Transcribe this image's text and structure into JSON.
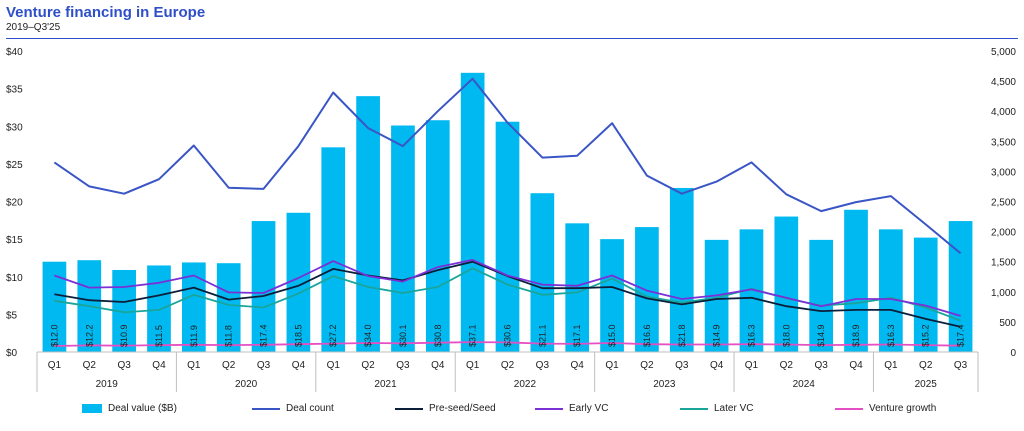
{
  "header": {
    "title": "Venture financing in Europe",
    "subtitle": "2019–Q3'25"
  },
  "colors": {
    "bar": "#00b9f1",
    "deal_count": "#3a55c6",
    "preseed": "#0b1f3a",
    "early_vc": "#7b2fd6",
    "later_vc": "#1aa59a",
    "venture_growth": "#e64fc3",
    "rule": "#2f4fc8"
  },
  "chart_data": {
    "type": "bar",
    "quarters": [
      "Q1",
      "Q2",
      "Q3",
      "Q4",
      "Q1",
      "Q2",
      "Q3",
      "Q4",
      "Q1",
      "Q2",
      "Q3",
      "Q4",
      "Q1",
      "Q2",
      "Q3",
      "Q4",
      "Q1",
      "Q2",
      "Q3",
      "Q4",
      "Q1",
      "Q2",
      "Q3",
      "Q4",
      "Q1",
      "Q2",
      "Q3"
    ],
    "years": [
      "2019",
      "2020",
      "2021",
      "2022",
      "2023",
      "2024",
      "2025"
    ],
    "y_left": {
      "min": 0,
      "max": 40,
      "ticks": [
        "$0",
        "$5",
        "$10",
        "$15",
        "$20",
        "$25",
        "$30",
        "$35",
        "$40"
      ]
    },
    "y_right": {
      "min": 0,
      "max": 5000,
      "ticks": [
        "0",
        "500",
        "1,000",
        "1,500",
        "2,000",
        "2,500",
        "3,000",
        "3,500",
        "4,000",
        "4,500",
        "5,000"
      ]
    },
    "deal_value": {
      "name": "Deal value ($B)",
      "values": [
        12.0,
        12.2,
        10.9,
        11.5,
        11.9,
        11.8,
        17.4,
        18.5,
        27.2,
        34.0,
        30.1,
        30.8,
        37.1,
        30.6,
        21.1,
        17.1,
        15.0,
        16.6,
        21.8,
        14.9,
        16.3,
        18.0,
        14.9,
        18.9,
        16.3,
        15.2,
        17.4
      ],
      "labels": [
        "$12.0",
        "$12.2",
        "$10.9",
        "$11.5",
        "$11.9",
        "$11.8",
        "$17.4",
        "$18.5",
        "$27.2",
        "$34.0",
        "$30.1",
        "$30.8",
        "$37.1",
        "$30.6",
        "$21.1",
        "$17.1",
        "$15.0",
        "$16.6",
        "$21.8",
        "$14.9",
        "$16.3",
        "$18.0",
        "$14.9",
        "$18.9",
        "$16.3",
        "$15.2",
        "$17.4"
      ]
    },
    "series": [
      {
        "name": "Deal count",
        "key": "deal_count",
        "values": [
          3150,
          2750,
          2630,
          2870,
          3430,
          2730,
          2710,
          3420,
          4310,
          3720,
          3420,
          4000,
          4540,
          3810,
          3230,
          3260,
          3800,
          2930,
          2630,
          2830,
          3150,
          2620,
          2340,
          2490,
          2590,
          2120,
          1640
        ]
      },
      {
        "name": "Pre-seed/Seed",
        "key": "preseed",
        "values": [
          960,
          860,
          830,
          940,
          1070,
          870,
          930,
          1100,
          1380,
          1270,
          1190,
          1360,
          1500,
          1260,
          1060,
          1060,
          1080,
          890,
          790,
          880,
          900,
          760,
          680,
          700,
          700,
          550,
          420
        ]
      },
      {
        "name": "Early VC",
        "key": "early_vc",
        "values": [
          1270,
          1070,
          1080,
          1150,
          1270,
          990,
          980,
          1230,
          1510,
          1260,
          1170,
          1410,
          1530,
          1270,
          1120,
          1100,
          1270,
          1020,
          880,
          940,
          1040,
          900,
          760,
          880,
          880,
          770,
          600
        ]
      },
      {
        "name": "Later VC",
        "key": "later_vc",
        "values": [
          850,
          760,
          660,
          700,
          950,
          780,
          740,
          970,
          1260,
          1080,
          980,
          1080,
          1390,
          1120,
          950,
          990,
          1220,
          920,
          820,
          900,
          1050,
          890,
          770,
          810,
          900,
          740,
          520
        ]
      },
      {
        "name": "Venture growth",
        "key": "venture_growth",
        "values": [
          100,
          110,
          105,
          115,
          120,
          115,
          120,
          130,
          140,
          150,
          145,
          155,
          165,
          160,
          140,
          135,
          150,
          130,
          125,
          125,
          130,
          125,
          115,
          120,
          125,
          115,
          105
        ]
      }
    ]
  }
}
